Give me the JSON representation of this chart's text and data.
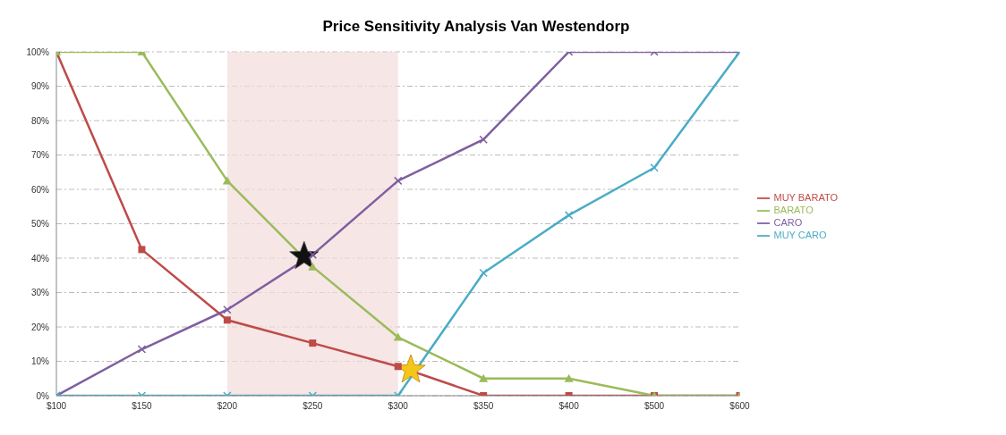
{
  "chart_data": {
    "type": "line",
    "title": "Price Sensitivity Analysis Van Westendorp",
    "categories": [
      "$100",
      "$150",
      "$200",
      "$250",
      "$300",
      "$350",
      "$400",
      "$500",
      "$600"
    ],
    "series": [
      {
        "name": "MUY BARATO",
        "color": "#be4b48",
        "marker": "square",
        "values": [
          100,
          42.5,
          22,
          15.3,
          8.5,
          0,
          0,
          0,
          0
        ]
      },
      {
        "name": "BARATO",
        "color": "#9bbb59",
        "marker": "triangle",
        "values": [
          100,
          100,
          62.5,
          37.5,
          17,
          5,
          5,
          0,
          0
        ]
      },
      {
        "name": "CARO",
        "color": "#7f5fa0",
        "marker": "cross",
        "values": [
          0,
          13.5,
          25,
          41,
          62.5,
          74.5,
          100,
          100,
          100
        ]
      },
      {
        "name": "MUY CARO",
        "color": "#4bacc6",
        "marker": "cross",
        "values": [
          0,
          0,
          0,
          0,
          0,
          35.7,
          52.5,
          66.3,
          100
        ]
      }
    ],
    "ylim": [
      0,
      100
    ],
    "yticks": [
      {
        "value": 0,
        "label": "0%"
      },
      {
        "value": 10,
        "label": "10%"
      },
      {
        "value": 20,
        "label": "20%"
      },
      {
        "value": 30,
        "label": "30%"
      },
      {
        "value": 40,
        "label": "40%"
      },
      {
        "value": 50,
        "label": "50%"
      },
      {
        "value": 60,
        "label": "60%"
      },
      {
        "value": 70,
        "label": "70%"
      },
      {
        "value": 80,
        "label": "80%"
      },
      {
        "value": 90,
        "label": "90%"
      },
      {
        "value": 100,
        "label": "100%"
      }
    ],
    "bands": [
      {
        "axis": "x",
        "from": "$200",
        "to": "$300",
        "color": "#f2dcdb"
      }
    ],
    "grid": "y",
    "legend": "right"
  }
}
